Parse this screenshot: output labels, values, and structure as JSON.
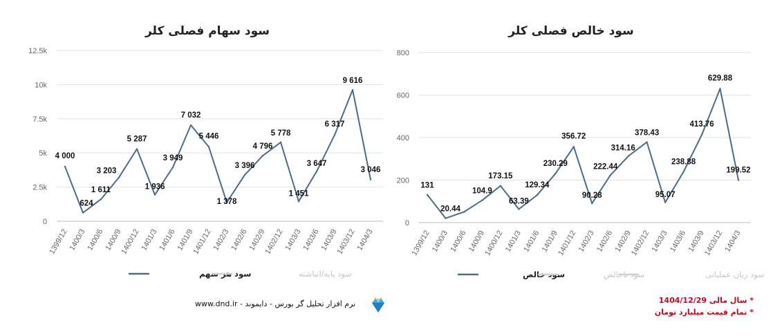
{
  "chart_data": [
    {
      "type": "line",
      "title": "سود سهام فصلی کلر",
      "categories": [
        "1399/12",
        "1400/3",
        "1400/6",
        "1400/9",
        "1400/12",
        "1401/3",
        "1401/6",
        "1401/9",
        "1401/12",
        "1402/3",
        "1402/6",
        "1402/9",
        "1402/12",
        "1403/3",
        "1403/6",
        "1403/9",
        "1403/12",
        "1404/3"
      ],
      "series": [
        {
          "name": "سود هر سهم",
          "values": [
            4000,
            624,
            1611,
            3203,
            5287,
            1936,
            3949,
            7032,
            5446,
            1378,
            3396,
            4796,
            5778,
            1451,
            3647,
            6317,
            9616,
            3046
          ],
          "labels": [
            "4 000",
            "624",
            "1 611",
            "3 203",
            "5 287",
            "1 936",
            "3 949",
            "7 032",
            "5 446",
            "1 378",
            "3 396",
            "4 796",
            "5 778",
            "1 451",
            "3 647",
            "6 317",
            "9 616",
            "3 046"
          ]
        }
      ],
      "legend_hidden": [
        "سود پایه/انباشته"
      ],
      "ylim": [
        0,
        12500
      ],
      "yticks": [
        0,
        2500,
        5000,
        7500,
        10000,
        12500
      ],
      "ytick_labels": [
        "0",
        "2.5k",
        "5k",
        "7.5k",
        "10k",
        "12.5k"
      ],
      "grid": true,
      "legend": "bottom",
      "line_color": "#4a6b8a"
    },
    {
      "type": "line",
      "title": "سود خالص فصلی کلر",
      "categories": [
        "1399/12",
        "1400/3",
        "1400/6",
        "1400/9",
        "1400/12",
        "1401/3",
        "1401/6",
        "1401/9",
        "1401/12",
        "1402/3",
        "1402/6",
        "1402/9",
        "1402/12",
        "1403/3",
        "1403/6",
        "1403/9",
        "1403/12",
        "1404/3"
      ],
      "series": [
        {
          "name": "سود خالص",
          "values": [
            131,
            20.44,
            50,
            104.9,
            173.15,
            63.39,
            129.34,
            230.29,
            356.72,
            90.28,
            222.44,
            314.16,
            378.43,
            95.07,
            238.88,
            413.76,
            629.88,
            199.52
          ],
          "labels": [
            "131",
            "20.44",
            "",
            "104.9",
            "173.15",
            "63.39",
            "129.34",
            "230.29",
            "356.72",
            "90.28",
            "222.44",
            "314.16",
            "378.43",
            "95.07",
            "238.88",
            "413.76",
            "629.88",
            "199.52"
          ]
        }
      ],
      "legend_hidden": [
        "سود ناخالص",
        "سود زیان عملیاتی"
      ],
      "ylim": [
        0,
        800
      ],
      "yticks": [
        0,
        200,
        400,
        600,
        800
      ],
      "ytick_labels": [
        "0",
        "200",
        "400",
        "600",
        "800"
      ],
      "grid": true,
      "legend": "bottom",
      "line_color": "#4a6b8a"
    }
  ],
  "footer": {
    "site": "www.dnd.ir",
    "text": "نرم افزار تحلیل گر بورس - دایموند"
  },
  "notes": {
    "fiscal_year_label": "سال مالی 1404/12/29",
    "unit_label": "تمام قیمت میلیارد تومان",
    "color": "#d0021b"
  },
  "logo_icon": "diamond-icon"
}
